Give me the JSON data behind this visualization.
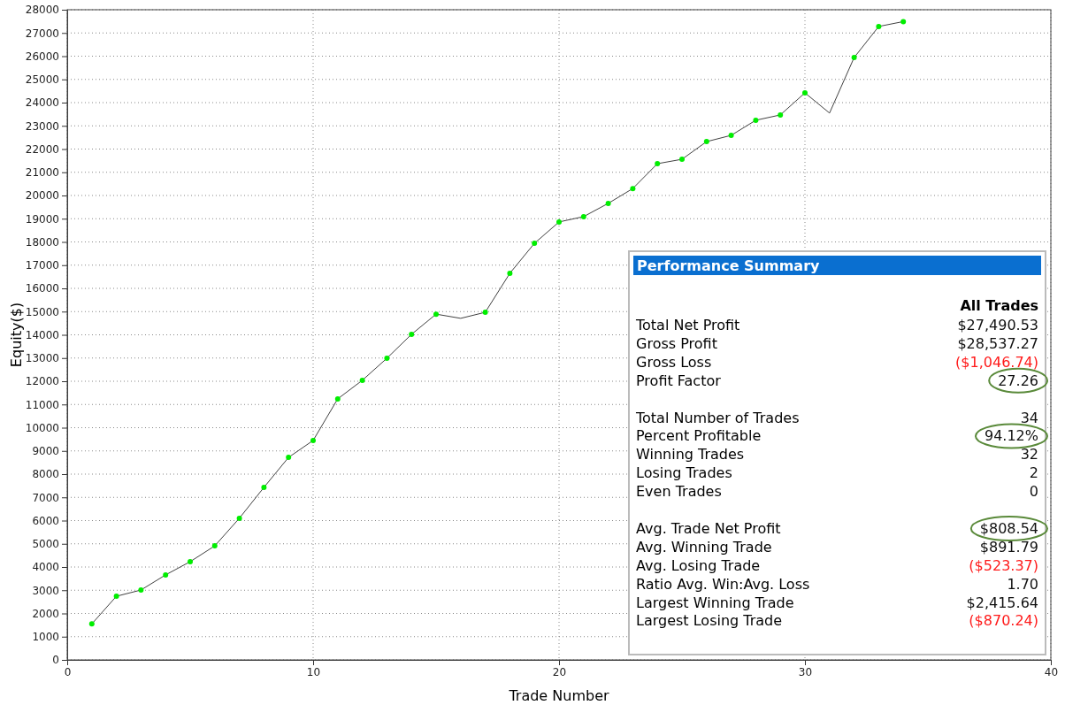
{
  "chart_data": {
    "type": "line",
    "xlabel": "Trade Number",
    "ylabel": "Equity($)",
    "x": [
      1,
      2,
      3,
      4,
      5,
      6,
      7,
      8,
      9,
      10,
      11,
      12,
      13,
      14,
      15,
      16,
      17,
      18,
      19,
      20,
      21,
      22,
      23,
      24,
      25,
      26,
      27,
      28,
      29,
      30,
      31,
      32,
      33,
      34
    ],
    "series": [
      {
        "type": "line",
        "color": "#404040",
        "values": [
          1550,
          2740,
          3010,
          3660,
          4230,
          4910,
          6100,
          7430,
          8720,
          9450,
          11240,
          12040,
          12990,
          14020,
          14890,
          14710,
          14970,
          16650,
          17940,
          18860,
          19090,
          19660,
          20300,
          21370,
          21560,
          22320,
          22590,
          23240,
          23470,
          24420,
          23550,
          25940,
          27280,
          27490
        ]
      },
      {
        "type": "scatter",
        "color": "#00ee00",
        "marker": "circle",
        "values": [
          1550,
          2740,
          3010,
          3660,
          4230,
          4910,
          6100,
          7430,
          8720,
          9450,
          11240,
          12040,
          12990,
          14020,
          14890,
          null,
          14970,
          16650,
          17940,
          18860,
          19090,
          19660,
          20300,
          21370,
          21560,
          22320,
          22590,
          23240,
          23470,
          24420,
          null,
          25940,
          27280,
          27490
        ]
      }
    ],
    "grid": true,
    "xlim": [
      0,
      40
    ],
    "xticks": [
      0,
      10,
      20,
      30,
      40
    ],
    "ylim": [
      0,
      28000
    ],
    "yticks": [
      0,
      1000,
      2000,
      3000,
      4000,
      5000,
      6000,
      7000,
      8000,
      9000,
      10000,
      11000,
      12000,
      13000,
      14000,
      15000,
      16000,
      17000,
      18000,
      19000,
      20000,
      21000,
      22000,
      23000,
      24000,
      25000,
      26000,
      27000,
      28000
    ],
    "annotations": [
      "Performance Summary",
      "All Trades",
      "Total Net Profit",
      "$27,490.53",
      "Gross Profit",
      "$28,537.27",
      "Gross Loss",
      "($1,046.74)",
      "Profit Factor",
      "27.26",
      "Total Number of Trades",
      "34",
      "Percent Profitable",
      "94.12%",
      "Winning Trades",
      "32",
      "Losing Trades",
      "2",
      "Even Trades",
      "0",
      "Avg. Trade Net Profit",
      "$808.54",
      "Avg. Winning Trade",
      "$891.79",
      "Avg. Losing Trade",
      "($523.37)",
      "Ratio Avg. Win:Avg. Loss",
      "1.70",
      "Largest Winning Trade",
      "$2,415.64",
      "Largest Losing Trade",
      "($870.24)"
    ]
  }
}
